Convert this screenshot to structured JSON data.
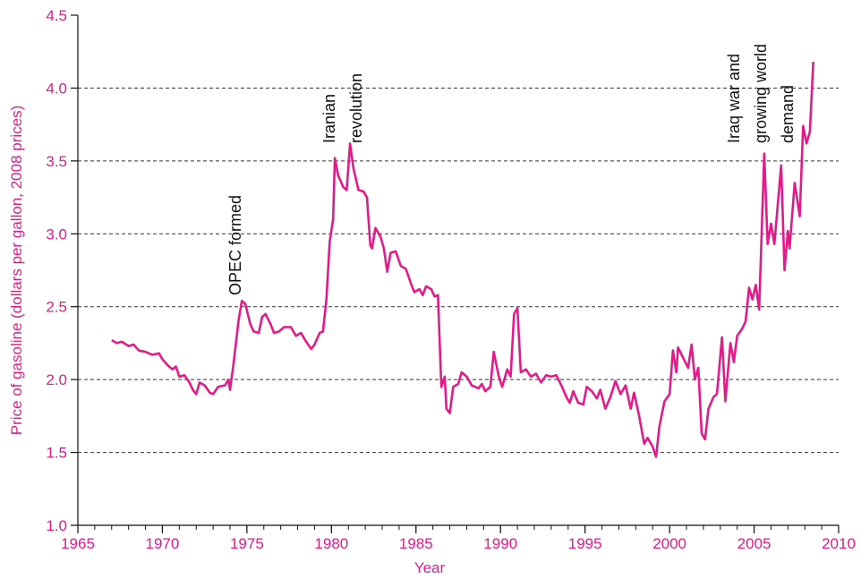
{
  "chart_data": {
    "type": "line",
    "xlabel": "Year",
    "ylabel": "Price of gasoline (dollars per gallon, 2008 prices)",
    "color": "#e6198a",
    "xlim": [
      1965,
      2010
    ],
    "xticks": [
      1965,
      1970,
      1975,
      1980,
      1985,
      1990,
      1995,
      2000,
      2005,
      2010
    ],
    "ylim": [
      1.0,
      4.5
    ],
    "yticks": [
      {
        "value": 1.0,
        "label": "1.0"
      },
      {
        "value": 1.5,
        "label": "1.5"
      },
      {
        "value": 2.0,
        "label": "2.0"
      },
      {
        "value": 2.5,
        "label": "2.5"
      },
      {
        "value": 3.0,
        "label": "3.0"
      },
      {
        "value": 3.5,
        "label": "3.5"
      },
      {
        "value": 4.0,
        "label": "4.0"
      },
      {
        "value": 4.5,
        "label": "4.5"
      }
    ],
    "grid": true,
    "annotations": [
      {
        "lines": [
          "OPEC formed"
        ]
      },
      {
        "lines": [
          "Iranian",
          "revolution"
        ]
      },
      {
        "lines": [
          "Iraq war and",
          "growing world",
          "demand"
        ]
      }
    ],
    "x": [
      1967.0,
      1967.3,
      1967.6,
      1968.0,
      1968.3,
      1968.6,
      1969.0,
      1969.4,
      1969.8,
      1970.0,
      1970.3,
      1970.6,
      1970.8,
      1971.0,
      1971.3,
      1971.6,
      1971.8,
      1972.0,
      1972.2,
      1972.5,
      1972.8,
      1973.0,
      1973.3,
      1973.7,
      1973.9,
      1974.0,
      1974.2,
      1974.5,
      1974.7,
      1974.9,
      1975.2,
      1975.4,
      1975.7,
      1975.9,
      1976.1,
      1976.4,
      1976.6,
      1976.9,
      1977.2,
      1977.6,
      1977.9,
      1978.2,
      1978.5,
      1978.8,
      1979.0,
      1979.3,
      1979.5,
      1979.7,
      1979.9,
      1980.1,
      1980.2,
      1980.4,
      1980.7,
      1980.9,
      1981.1,
      1981.3,
      1981.6,
      1981.9,
      1982.1,
      1982.3,
      1982.4,
      1982.6,
      1982.9,
      1983.1,
      1983.3,
      1983.5,
      1983.8,
      1984.1,
      1984.4,
      1984.7,
      1984.9,
      1985.2,
      1985.4,
      1985.6,
      1985.9,
      1986.1,
      1986.3,
      1986.5,
      1986.7,
      1986.8,
      1987.0,
      1987.2,
      1987.5,
      1987.7,
      1988.0,
      1988.3,
      1988.7,
      1988.9,
      1989.1,
      1989.4,
      1989.6,
      1989.9,
      1990.1,
      1990.4,
      1990.6,
      1990.8,
      1991.0,
      1991.2,
      1991.5,
      1991.8,
      1992.1,
      1992.4,
      1992.7,
      1993.0,
      1993.3,
      1993.6,
      1993.9,
      1994.1,
      1994.3,
      1994.6,
      1994.9,
      1995.1,
      1995.4,
      1995.7,
      1995.9,
      1996.2,
      1996.5,
      1996.8,
      1997.1,
      1997.4,
      1997.7,
      1997.9,
      1998.2,
      1998.5,
      1998.7,
      1999.0,
      1999.2,
      1999.4,
      1999.7,
      2000.0,
      2000.2,
      2000.4,
      2000.5,
      2000.8,
      2001.1,
      2001.3,
      2001.5,
      2001.7,
      2001.9,
      2002.1,
      2002.3,
      2002.6,
      2002.8,
      2003.1,
      2003.3,
      2003.6,
      2003.8,
      2004.0,
      2004.3,
      2004.5,
      2004.7,
      2004.9,
      2005.1,
      2005.3,
      2005.6,
      2005.8,
      2006.0,
      2006.2,
      2006.4,
      2006.6,
      2006.8,
      2007.0,
      2007.1,
      2007.4,
      2007.7,
      2007.9,
      2008.1,
      2008.3,
      2008.5
    ],
    "values": [
      2.27,
      2.25,
      2.26,
      2.23,
      2.24,
      2.2,
      2.19,
      2.17,
      2.18,
      2.14,
      2.1,
      2.07,
      2.09,
      2.02,
      2.03,
      1.98,
      1.93,
      1.9,
      1.98,
      1.96,
      1.91,
      1.9,
      1.95,
      1.96,
      2.0,
      1.93,
      2.1,
      2.4,
      2.54,
      2.52,
      2.38,
      2.33,
      2.32,
      2.43,
      2.45,
      2.38,
      2.32,
      2.33,
      2.36,
      2.36,
      2.3,
      2.32,
      2.26,
      2.21,
      2.24,
      2.32,
      2.33,
      2.55,
      2.95,
      3.1,
      3.52,
      3.4,
      3.32,
      3.3,
      3.62,
      3.45,
      3.3,
      3.29,
      3.25,
      2.92,
      2.9,
      3.04,
      2.98,
      2.9,
      2.74,
      2.87,
      2.88,
      2.78,
      2.76,
      2.66,
      2.6,
      2.62,
      2.58,
      2.64,
      2.62,
      2.57,
      2.58,
      1.95,
      2.02,
      1.8,
      1.77,
      1.95,
      1.97,
      2.05,
      2.02,
      1.96,
      1.94,
      1.97,
      1.92,
      1.95,
      2.19,
      2.02,
      1.95,
      2.07,
      2.02,
      2.45,
      2.49,
      2.05,
      2.07,
      2.02,
      2.04,
      1.98,
      2.03,
      2.02,
      2.03,
      1.96,
      1.88,
      1.84,
      1.92,
      1.84,
      1.83,
      1.95,
      1.92,
      1.87,
      1.93,
      1.8,
      1.88,
      1.99,
      1.9,
      1.96,
      1.8,
      1.91,
      1.75,
      1.56,
      1.6,
      1.54,
      1.47,
      1.68,
      1.85,
      1.9,
      2.2,
      2.05,
      2.22,
      2.15,
      2.08,
      2.24,
      2.0,
      2.08,
      1.63,
      1.59,
      1.8,
      1.88,
      1.9,
      2.29,
      1.85,
      2.25,
      2.12,
      2.3,
      2.35,
      2.4,
      2.63,
      2.55,
      2.65,
      2.48,
      3.55,
      2.93,
      3.07,
      2.93,
      3.2,
      3.47,
      2.75,
      3.02,
      2.9,
      3.35,
      3.12,
      3.74,
      3.62,
      3.7,
      4.18
    ]
  }
}
